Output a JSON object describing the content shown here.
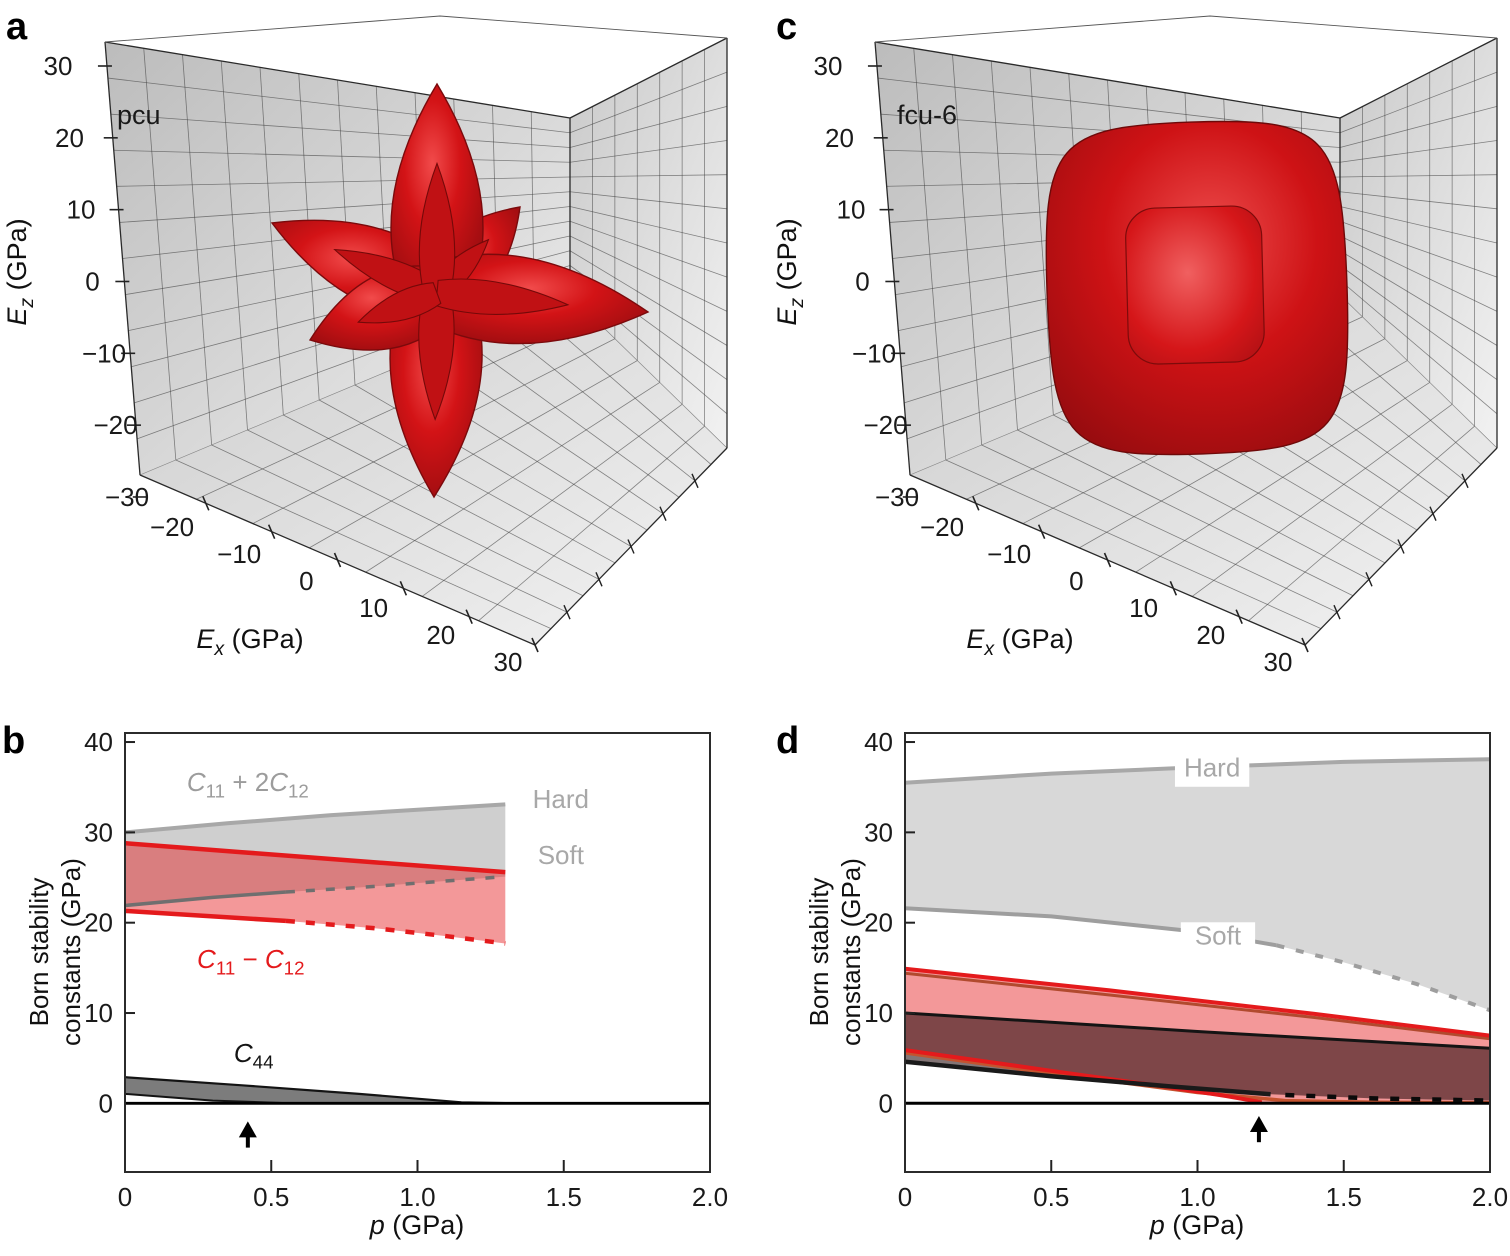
{
  "panel_letters": {
    "a": "a",
    "b": "b",
    "c": "c",
    "d": "d"
  },
  "panel_a": {
    "tag": "pcu",
    "surface": "6-arm star elastic-modulus isosurface",
    "surface_color": "#c01113",
    "z_ticks": [
      "30",
      "20",
      "10",
      "0",
      "−10",
      "−20",
      "−30"
    ],
    "x_ticks": [
      "−20",
      "−10",
      "0",
      "10",
      "20",
      "30"
    ],
    "xlabel_segs": [
      {
        "t": "E",
        "it": 1
      },
      {
        "t": "x",
        "sub": 1,
        "it": 1
      },
      {
        "t": " (GPa)"
      }
    ],
    "zlabel_segs": [
      {
        "t": "E",
        "it": 1
      },
      {
        "t": "z",
        "sub": 1,
        "it": 1
      },
      {
        "t": " (GPa)"
      }
    ]
  },
  "panel_c": {
    "tag": "fcu-6",
    "surface": "rounded-cube elastic-modulus isosurface with inner cube",
    "surface_color": "#c01113",
    "z_ticks": [
      "30",
      "20",
      "10",
      "0",
      "−10",
      "−20",
      "−30"
    ],
    "x_ticks": [
      "−20",
      "−10",
      "0",
      "10",
      "20",
      "30"
    ],
    "xlabel_segs": [
      {
        "t": "E",
        "it": 1
      },
      {
        "t": "x",
        "sub": 1,
        "it": 1
      },
      {
        "t": " (GPa)"
      }
    ],
    "zlabel_segs": [
      {
        "t": "E",
        "it": 1
      },
      {
        "t": "z",
        "sub": 1,
        "it": 1
      },
      {
        "t": " (GPa)"
      }
    ]
  },
  "chart_data": [
    {
      "id": "b",
      "type": "line",
      "xlabel_segs": [
        {
          "t": "p",
          "it": 1
        },
        {
          "t": " (GPa)"
        }
      ],
      "ylabel_lines": [
        "Born stability",
        "constants (GPa)"
      ],
      "xlim": [
        0,
        2
      ],
      "ylim": [
        -7.6,
        41
      ],
      "x_ticks": [
        {
          "v": 0,
          "label": "0"
        },
        {
          "v": 0.5,
          "label": "0.5"
        },
        {
          "v": 1,
          "label": "1.0"
        },
        {
          "v": 1.5,
          "label": "1.5"
        },
        {
          "v": 2,
          "label": "2.0"
        }
      ],
      "y_ticks": [
        {
          "v": 0,
          "label": "0"
        },
        {
          "v": 10,
          "label": "10"
        },
        {
          "v": 20,
          "label": "20"
        },
        {
          "v": 30,
          "label": "30"
        },
        {
          "v": 40,
          "label": "40"
        }
      ],
      "series": [
        {
          "name": "hard_line",
          "color": "#a8a8a8",
          "width": 4,
          "pts": [
            [
              0,
              30.0
            ],
            [
              0.35,
              31.0
            ],
            [
              0.7,
              31.9
            ],
            [
              1.0,
              32.5
            ],
            [
              1.3,
              33.1
            ]
          ]
        },
        {
          "name": "soft_line_solid",
          "color": "#6f6f6f",
          "width": 3.5,
          "pts": [
            [
              0,
              21.9
            ],
            [
              0.3,
              22.8
            ],
            [
              0.55,
              23.4
            ]
          ]
        },
        {
          "name": "soft_line_dashed",
          "color": "#6f6f6f",
          "width": 3.5,
          "dash": [
            9,
            11
          ],
          "pts": [
            [
              0.55,
              23.4
            ],
            [
              0.8,
              23.9
            ],
            [
              1.05,
              24.5
            ],
            [
              1.3,
              25.1
            ]
          ]
        },
        {
          "name": "red_hard",
          "color": "#e41a1c",
          "width": 4.5,
          "pts": [
            [
              0,
              28.8
            ],
            [
              0.4,
              27.8
            ],
            [
              0.85,
              26.7
            ],
            [
              1.3,
              25.6
            ]
          ]
        },
        {
          "name": "red_soft_solid",
          "color": "#e41a1c",
          "width": 4.5,
          "pts": [
            [
              0,
              21.3
            ],
            [
              0.3,
              20.7
            ],
            [
              0.55,
              20.2
            ]
          ]
        },
        {
          "name": "red_soft_dashed",
          "color": "#e41a1c",
          "width": 4.5,
          "dash": [
            9,
            11
          ],
          "pts": [
            [
              0.55,
              20.2
            ],
            [
              0.85,
              19.4
            ],
            [
              1.1,
              18.5
            ],
            [
              1.3,
              17.7
            ]
          ]
        },
        {
          "name": "c44_top",
          "color": "#141414",
          "width": 2.2,
          "pts": [
            [
              0,
              2.9
            ],
            [
              0.4,
              2.0
            ],
            [
              0.8,
              1.05
            ],
            [
              1.15,
              0.12
            ],
            [
              1.3,
              0.03
            ]
          ]
        },
        {
          "name": "c44_bottom",
          "color": "#141414",
          "width": 2,
          "pts": [
            [
              0,
              1.05
            ],
            [
              0.3,
              0.3
            ],
            [
              0.55,
              0.03
            ]
          ]
        },
        {
          "name": "zero_line",
          "color": "#000000",
          "width": 2.8,
          "pts": [
            [
              0,
              0.0
            ],
            [
              2,
              0.0
            ]
          ]
        }
      ],
      "fills": [
        {
          "top": [
            "hard_line"
          ],
          "bottom": [
            "soft_line_solid",
            "soft_line_dashed"
          ],
          "color": "rgba(160,160,160,0.5)"
        },
        {
          "top": [
            "red_hard"
          ],
          "bottom": [
            "red_soft_solid",
            "red_soft_dashed"
          ],
          "color": "rgba(228,26,28,0.45)"
        },
        {
          "top": [
            "c44_top"
          ],
          "bottom": [
            "c44_bottom"
          ],
          "color": "#7c7c7c"
        }
      ],
      "labels": [
        {
          "segs": [
            {
              "t": "C",
              "it": 1
            },
            {
              "t": "11",
              "sub": 1
            },
            {
              "t": " + 2"
            },
            {
              "t": "C",
              "it": 1
            },
            {
              "t": "12",
              "sub": 1
            }
          ],
          "x": 0.42,
          "y": 34.6,
          "color": "#9c9c9c",
          "size": 26
        },
        {
          "segs": [
            {
              "t": "Hard"
            }
          ],
          "x": 1.49,
          "y": 32.7,
          "color": "#a8a8a8",
          "size": 26
        },
        {
          "segs": [
            {
              "t": "Soft"
            }
          ],
          "x": 1.49,
          "y": 26.5,
          "color": "#a8a8a8",
          "size": 26
        },
        {
          "segs": [
            {
              "t": "C",
              "it": 1
            },
            {
              "t": "11",
              "sub": 1
            },
            {
              "t": " − "
            },
            {
              "t": "C",
              "it": 1
            },
            {
              "t": "12",
              "sub": 1
            }
          ],
          "x": 0.43,
          "y": 15.0,
          "color": "#e41a1c",
          "size": 26
        },
        {
          "segs": [
            {
              "t": "C",
              "it": 1
            },
            {
              "t": "44",
              "sub": 1
            }
          ],
          "x": 0.44,
          "y": 4.6,
          "color": "#141414",
          "size": 26
        }
      ],
      "arrow": {
        "x": 0.42,
        "y_tail": -4.9,
        "y_head": -2.0
      }
    },
    {
      "id": "d",
      "type": "line",
      "xlabel_segs": [
        {
          "t": "p",
          "it": 1
        },
        {
          "t": " (GPa)"
        }
      ],
      "ylabel_lines": [
        "Born stability",
        "constants (GPa)"
      ],
      "xlim": [
        0,
        2
      ],
      "ylim": [
        -7.6,
        41
      ],
      "x_ticks": [
        {
          "v": 0,
          "label": "0"
        },
        {
          "v": 0.5,
          "label": "0.5"
        },
        {
          "v": 1,
          "label": "1.0"
        },
        {
          "v": 1.5,
          "label": "1.5"
        },
        {
          "v": 2,
          "label": "2.0"
        }
      ],
      "y_ticks": [
        {
          "v": 0,
          "label": "0"
        },
        {
          "v": 10,
          "label": "10"
        },
        {
          "v": 20,
          "label": "20"
        },
        {
          "v": 30,
          "label": "30"
        },
        {
          "v": 40,
          "label": "40"
        }
      ],
      "series": [
        {
          "name": "hard_line",
          "color": "#a8a8a8",
          "width": 4,
          "pts": [
            [
              0,
              35.5
            ],
            [
              0.5,
              36.5
            ],
            [
              1,
              37.2
            ],
            [
              1.5,
              37.8
            ],
            [
              2,
              38.1
            ]
          ]
        },
        {
          "name": "soft_line_solid",
          "color": "#9e9e9e",
          "width": 4,
          "pts": [
            [
              0,
              21.6
            ],
            [
              0.5,
              20.7
            ],
            [
              1.0,
              19.0
            ],
            [
              1.27,
              17.5
            ]
          ]
        },
        {
          "name": "soft_line_dashed",
          "color": "#9e9e9e",
          "width": 4,
          "dash": [
            8,
            12
          ],
          "pts": [
            [
              1.27,
              17.5
            ],
            [
              1.5,
              15.6
            ],
            [
              1.75,
              13.2
            ],
            [
              2,
              10.3
            ]
          ]
        },
        {
          "name": "brown_hard",
          "color": "#b14a2e",
          "width": 3,
          "pts": [
            [
              0,
              14.4
            ],
            [
              0.7,
              12.0
            ],
            [
              1.4,
              9.5
            ],
            [
              2,
              7.15
            ]
          ]
        },
        {
          "name": "red_hard",
          "color": "#e41a1c",
          "width": 4,
          "pts": [
            [
              0,
              14.9
            ],
            [
              0.7,
              12.5
            ],
            [
              1.4,
              9.9
            ],
            [
              2,
              7.5
            ]
          ]
        },
        {
          "name": "black_hard",
          "color": "#141414",
          "width": 3,
          "pts": [
            [
              0,
              10.0
            ],
            [
              1,
              7.95
            ],
            [
              2,
              6.1
            ]
          ]
        },
        {
          "name": "brown_soft",
          "color": "#c4532f",
          "width": 3.5,
          "pts": [
            [
              0,
              5.6
            ],
            [
              0.5,
              3.3
            ],
            [
              1.0,
              1.2
            ],
            [
              1.3,
              0.3
            ],
            [
              1.6,
              0.12
            ],
            [
              2,
              0.06
            ]
          ]
        },
        {
          "name": "red_soft",
          "color": "#e41a1c",
          "width": 4,
          "pts": [
            [
              0,
              5.9
            ],
            [
              0.5,
              3.6
            ],
            [
              0.9,
              1.8
            ],
            [
              1.1,
              0.8
            ],
            [
              1.22,
              0.12
            ]
          ]
        },
        {
          "name": "black_soft",
          "color": "#1a1a1a",
          "width": 4.5,
          "pts": [
            [
              0,
              4.6
            ],
            [
              0.5,
              3.0
            ],
            [
              0.9,
              1.9
            ],
            [
              1.25,
              1.0
            ]
          ]
        },
        {
          "name": "black_soft_dashed",
          "color": "#0a0a0a",
          "width": 4.5,
          "dash": [
            9,
            12
          ],
          "pts": [
            [
              1.3,
              0.92
            ],
            [
              1.6,
              0.55
            ],
            [
              2,
              0.3
            ]
          ]
        },
        {
          "name": "zero_line",
          "color": "#000000",
          "width": 3,
          "pts": [
            [
              0,
              0.0
            ],
            [
              2,
              0.0
            ]
          ]
        }
      ],
      "fills": [
        {
          "top": [
            "hard_line"
          ],
          "bottom": [
            "soft_line_solid",
            "soft_line_dashed"
          ],
          "color": "rgba(168,168,168,0.45)"
        },
        {
          "top": [
            "red_hard"
          ],
          "bottom_pts": [
            [
              0,
              5.9
            ],
            [
              0.5,
              3.6
            ],
            [
              0.9,
              1.8
            ],
            [
              1.1,
              0.8
            ],
            [
              1.22,
              0.1
            ],
            [
              2,
              0.06
            ]
          ],
          "color": "rgba(228,26,28,0.45)"
        },
        {
          "top": [
            "black_hard"
          ],
          "bottom_pts": [
            [
              0,
              4.6
            ],
            [
              0.5,
              3.0
            ],
            [
              0.9,
              1.9
            ],
            [
              1.25,
              1.0
            ],
            [
              1.6,
              0.55
            ],
            [
              2,
              0.3
            ]
          ],
          "color": "rgba(30,4,6,0.55)"
        }
      ],
      "labels": [
        {
          "segs": [
            {
              "t": "Hard"
            }
          ],
          "x": 1.05,
          "y": 36.2,
          "color": "#a8a8a8",
          "size": 26,
          "chip": true
        },
        {
          "segs": [
            {
              "t": "Soft"
            }
          ],
          "x": 1.07,
          "y": 17.6,
          "color": "#a8a8a8",
          "size": 26,
          "chip": true
        }
      ],
      "arrow": {
        "x": 1.21,
        "y_tail": -4.3,
        "y_head": -1.4
      }
    }
  ]
}
